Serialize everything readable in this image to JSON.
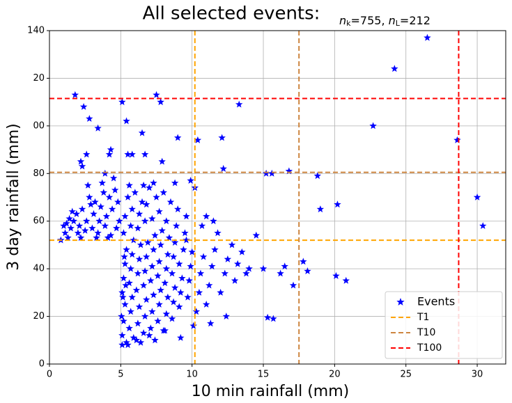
{
  "chart_data": {
    "type": "scatter",
    "title": "All selected events:",
    "subtitle": [
      "n",
      "k",
      "=755, ",
      "n",
      "L",
      "=212"
    ],
    "x_label": "10 min rainfall (mm)",
    "y_label": "3 day rainfall (mm)",
    "xlim": [
      0,
      32
    ],
    "ylim": [
      0,
      140
    ],
    "xticks": [
      0,
      5,
      10,
      15,
      20,
      25,
      30
    ],
    "yticks": [
      0,
      20,
      40,
      60,
      80,
      {
        "value": 100,
        "label": "00"
      },
      {
        "value": 120,
        "label": "20"
      },
      140
    ],
    "grid": true,
    "legend": "lower right",
    "series": [
      {
        "name": "Events",
        "color": "#0000ff",
        "marker": "star",
        "x": [
          26.5,
          24.2,
          22.7,
          28.6,
          30,
          30.4,
          20.2,
          19,
          18.8,
          16.8,
          15.2,
          15.6,
          13.3,
          12.1,
          12.2,
          10.4,
          10.2,
          17.8,
          18.1,
          20.1,
          20.8,
          15.3,
          15.7,
          17.1,
          16.2,
          16.5,
          14.5,
          15,
          14,
          1.8,
          2.4,
          2.8,
          5.1,
          5.4,
          7.5,
          7.8,
          6.5,
          9,
          3.4,
          4.3,
          4.2,
          5.5,
          5.8,
          6.7,
          7.9,
          2.2,
          2.6,
          2.3,
          3.9,
          5.1,
          5.5,
          9.2,
          1,
          1.2,
          1.4,
          1.5,
          1.7,
          1.9,
          2,
          2.1,
          2.3,
          2.5,
          2.6,
          2.8,
          3,
          3.1,
          3.2,
          3.4,
          3.5,
          3.6,
          3.8,
          3.9,
          4,
          4.2,
          4.3,
          4.4,
          4.6,
          4.7,
          4.8,
          4.9,
          1.3,
          2.2,
          3.3,
          4.1,
          1.1,
          2.7,
          3.7,
          4.5,
          2.9,
          1.6,
          0.8,
          5.1,
          5.2,
          5.3,
          5.1,
          5.2,
          5.3,
          5.4,
          5.2,
          5.3,
          5.5,
          5.6,
          5.7,
          5.8,
          5.6,
          5.7,
          5.8,
          5.9,
          5.7,
          5.8,
          6,
          6.1,
          6.2,
          6.3,
          6.1,
          6.2,
          6.3,
          6.4,
          6.2,
          6.3,
          6.5,
          6.6,
          6.7,
          6.8,
          6.6,
          6.7,
          6.8,
          6.9,
          6.7,
          6.8,
          7,
          7.1,
          7.2,
          7.3,
          7.1,
          7.2,
          7.3,
          7.4,
          7.2,
          7.5,
          7.6,
          7.7,
          7.8,
          7.6,
          7.7,
          7.8,
          7.9,
          7.7,
          8,
          8.1,
          8.2,
          8.3,
          8.1,
          8.2,
          8.3,
          8.4,
          8.2,
          8.5,
          8.6,
          8.7,
          8.8,
          8.6,
          8.7,
          8.8,
          8.9,
          9,
          9.1,
          9.2,
          9.3,
          9.1,
          9.4,
          9.5,
          9.6,
          9.7,
          9.8,
          9.9,
          10,
          9.6,
          9.9,
          10.1,
          10.3,
          10.5,
          10.6,
          10.8,
          11,
          11.2,
          11.4,
          11.6,
          11.8,
          12,
          12.3,
          12.5,
          12.8,
          13,
          13.2,
          13.5,
          13.8,
          11,
          10.7,
          11.5,
          12.4,
          11.3,
          5.4,
          5.9,
          6.4,
          7,
          7.4,
          8,
          5.05,
          5.15,
          5.25,
          5.35,
          5.6,
          6.6,
          7.3,
          8.8
        ],
        "values": [
          137,
          124,
          100,
          94,
          70,
          58,
          67,
          65,
          79,
          81,
          80,
          80,
          109,
          95,
          82,
          94,
          74,
          43,
          39,
          37,
          35,
          19.5,
          19,
          33,
          38,
          41,
          54,
          40,
          40,
          113,
          108,
          103,
          110,
          102,
          113,
          110,
          97,
          95,
          99,
          90,
          88,
          88,
          88,
          88,
          85,
          85,
          88,
          83,
          80,
          8,
          8,
          11,
          58,
          59,
          61,
          57,
          60,
          63,
          55,
          58,
          65,
          56,
          60,
          70,
          57,
          63,
          68,
          55,
          60,
          66,
          72,
          58,
          62,
          70,
          54,
          65,
          73,
          57,
          68,
          60,
          53,
          53,
          53,
          53,
          55,
          75,
          76,
          78,
          67,
          64,
          52,
          12,
          18,
          25,
          30,
          36,
          42,
          48,
          55,
          62,
          70,
          15,
          22,
          28,
          34,
          40,
          46,
          52,
          58,
          65,
          72,
          10,
          17,
          24,
          31,
          38,
          44,
          50,
          57,
          63,
          68,
          13,
          20,
          27,
          33,
          39,
          45,
          51,
          60,
          67,
          74,
          15,
          22,
          29,
          35,
          41,
          48,
          54,
          61,
          70,
          18,
          25,
          31,
          37,
          43,
          50,
          56,
          64,
          72,
          14,
          21,
          28,
          34,
          40,
          46,
          53,
          60,
          68,
          19,
          26,
          32,
          38,
          45,
          51,
          58,
          65,
          24,
          30,
          36,
          42,
          48,
          55,
          62,
          28,
          35,
          41,
          47,
          52,
          77,
          16,
          22,
          30,
          38,
          45,
          25,
          33,
          41,
          48,
          55,
          30,
          38,
          44,
          50,
          35,
          42,
          47,
          38,
          62,
          58,
          60,
          20,
          17,
          9,
          11,
          9,
          12,
          10,
          14,
          20,
          28,
          45,
          33,
          75,
          75,
          76,
          76
        ]
      }
    ],
    "thresholds": [
      {
        "name": "T1",
        "color": "#ffa500",
        "x": 10.2,
        "y": 52
      },
      {
        "name": "T10",
        "color": "#cd853f",
        "x": 17.5,
        "y": 80.5
      },
      {
        "name": "T100",
        "color": "#ff0000",
        "x": 28.7,
        "y": 111.5
      }
    ]
  }
}
